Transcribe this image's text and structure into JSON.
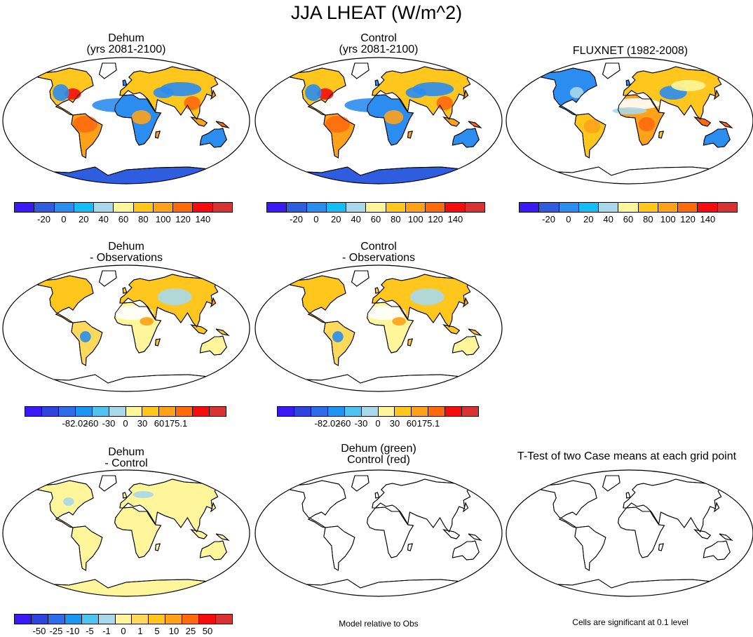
{
  "figure": {
    "title": "JJA LHEAT (W/m^2)"
  },
  "panels": [
    {
      "id": "dehum",
      "title_lines": [
        "Dehum",
        "(yrs 2081-2100)"
      ],
      "field": "model"
    },
    {
      "id": "control",
      "title_lines": [
        "Control",
        "(yrs 2081-2100)"
      ],
      "field": "model"
    },
    {
      "id": "fluxnet",
      "title_lines": [
        "FLUXNET (1982-2008)"
      ],
      "field": "obs"
    },
    {
      "id": "dehum-obs",
      "title_lines": [
        "Dehum",
        "- Observations"
      ],
      "field": "diff"
    },
    {
      "id": "control-obs",
      "title_lines": [
        "Control",
        "- Observations"
      ],
      "field": "diff"
    },
    {
      "id": "dehum-control",
      "title_lines": [
        "Dehum",
        "- Control"
      ],
      "field": "case_diff"
    },
    {
      "id": "green-red",
      "title_lines": [
        "Dehum (green)",
        "Control (red)"
      ],
      "field": "empty"
    },
    {
      "id": "ttest",
      "title_lines": [
        "T-Test of two Case means at each grid point"
      ],
      "field": "empty"
    }
  ],
  "colorbars": {
    "absolute": {
      "colors": [
        "#3a19f5",
        "#2e5de0",
        "#2b8df0",
        "#14bdf5",
        "#a9d8ea",
        "#fff59b",
        "#ffc61e",
        "#ffa21a",
        "#ff6a0d",
        "#f50d0d",
        "#d83232"
      ],
      "tick_labels": [
        "-20",
        "0",
        "20",
        "40",
        "60",
        "80",
        "100",
        "120",
        "140"
      ]
    },
    "vs_obs": {
      "colors": [
        "#3a19f5",
        "#2e45dd",
        "#2e6de8",
        "#1a95f2",
        "#4fc3f0",
        "#a9d8ea",
        "#fff59b",
        "#ffc61e",
        "#ffa21a",
        "#ff6a0d",
        "#f50d0d",
        "#d83232"
      ],
      "tick_labels": [
        "-82.02",
        "-60",
        "-30",
        "0",
        "30",
        "60",
        "175.1"
      ]
    },
    "case_diff": {
      "colors": [
        "#3a19f5",
        "#2e45dd",
        "#2e6de8",
        "#1a95f2",
        "#4fc3f0",
        "#a9d8ea",
        "#fff59b",
        "#ffd95a",
        "#ffc61e",
        "#ffa21a",
        "#ff6a0d",
        "#f50d0d",
        "#d83232"
      ],
      "tick_labels": [
        "-50",
        "-25",
        "-10",
        "-5",
        "-1",
        "0",
        "1",
        "5",
        "10",
        "25",
        "50"
      ]
    }
  },
  "notes": {
    "model_relative": "Model relative to Obs",
    "significance": "Cells are significant at 0.1 level"
  }
}
